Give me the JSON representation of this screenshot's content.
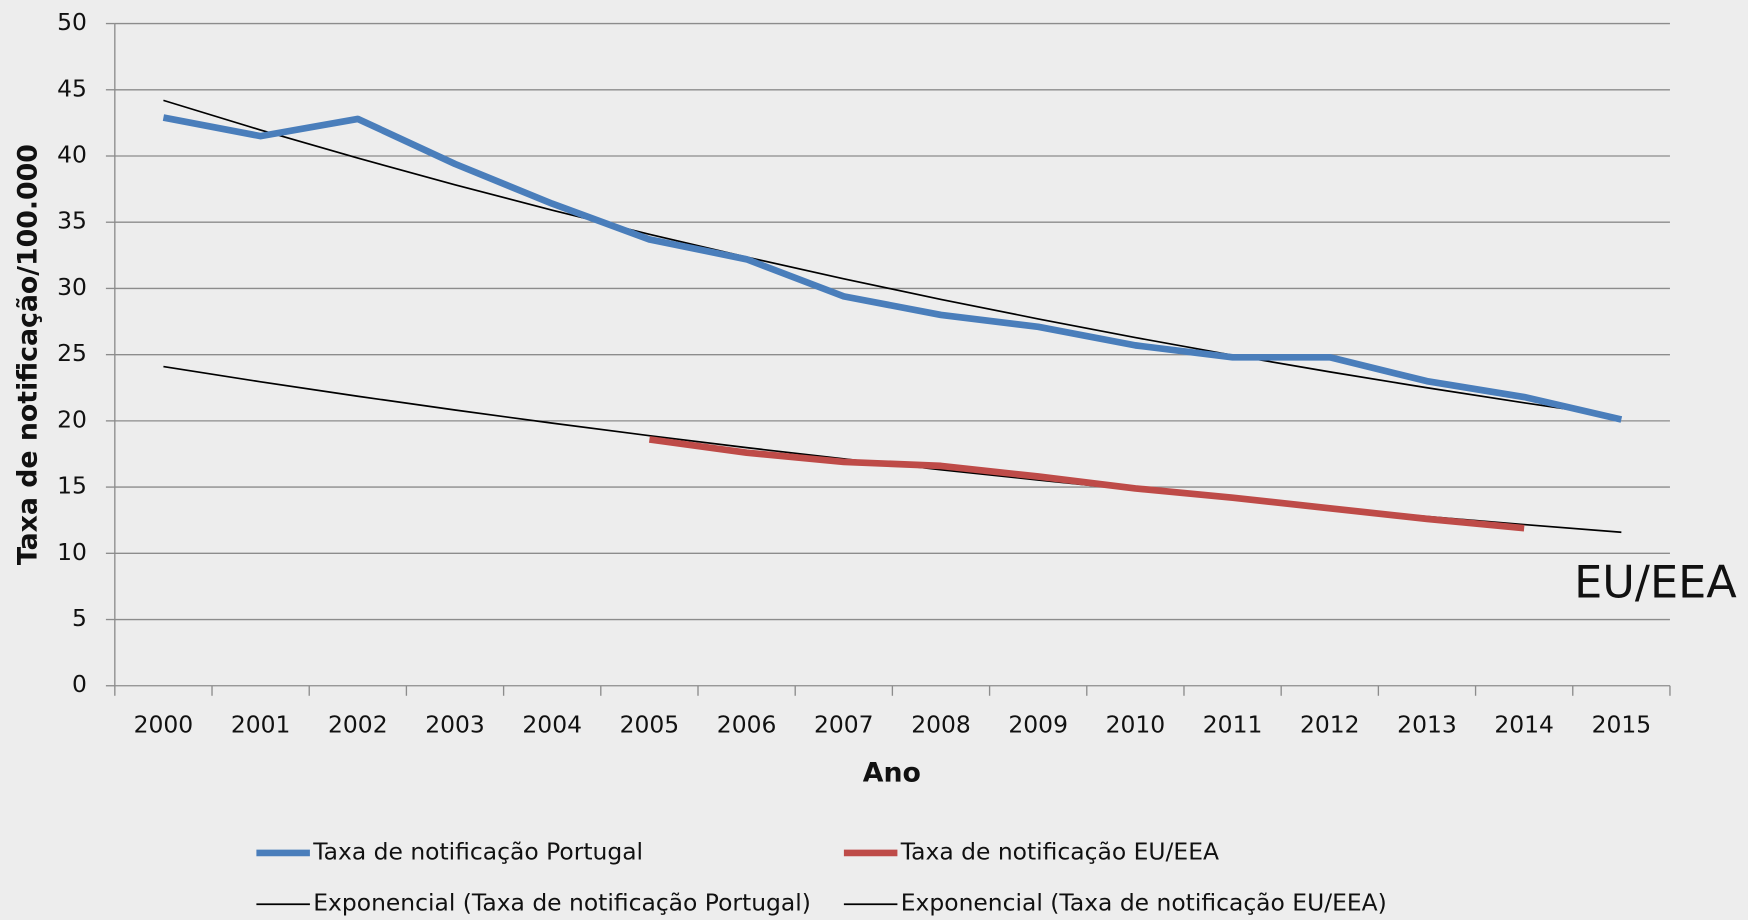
{
  "chart_data": {
    "type": "line",
    "x_label": "Ano",
    "y_label": "Taxa de notificação/100.000",
    "annotation": "EU/EEA",
    "categories": [
      "2000",
      "2001",
      "2002",
      "2003",
      "2004",
      "2005",
      "2006",
      "2007",
      "2008",
      "2009",
      "2010",
      "2011",
      "2012",
      "2013",
      "2014",
      "2015"
    ],
    "series": [
      {
        "name": "Taxa de notificação Portugal",
        "color": "#4a7ebb",
        "width": 6,
        "values": [
          42.9,
          41.5,
          42.8,
          39.4,
          36.4,
          33.7,
          32.2,
          29.4,
          28.0,
          27.1,
          25.7,
          24.8,
          24.8,
          23.0,
          21.8,
          20.1
        ]
      },
      {
        "name": "Taxa de notificação EU/EEA",
        "color": "#be4b48",
        "width": 6,
        "values": [
          null,
          null,
          null,
          null,
          null,
          18.6,
          17.6,
          16.9,
          16.6,
          15.8,
          14.9,
          14.2,
          13.4,
          12.6,
          11.9,
          null
        ]
      },
      {
        "name": "Exponencial (Taxa de notificação Portugal)",
        "color": "#000000",
        "width": 1.5,
        "values": [
          44.2,
          41.96,
          39.84,
          37.82,
          35.91,
          34.09,
          32.37,
          30.73,
          29.17,
          27.7,
          26.29,
          24.96,
          23.7,
          22.5,
          21.36,
          20.28
        ]
      },
      {
        "name": "Exponencial (Taxa de notificação EU/EEA)",
        "color": "#000000",
        "width": 1.5,
        "values": [
          24.1,
          22.95,
          21.86,
          20.82,
          19.83,
          18.88,
          17.98,
          17.13,
          16.31,
          15.53,
          14.79,
          14.09,
          13.42,
          12.78,
          12.17,
          11.59
        ]
      }
    ],
    "ylim": [
      0,
      50
    ],
    "yticks": [
      0,
      5,
      10,
      15,
      20,
      25,
      30,
      35,
      40,
      45,
      50
    ],
    "grid": true
  }
}
